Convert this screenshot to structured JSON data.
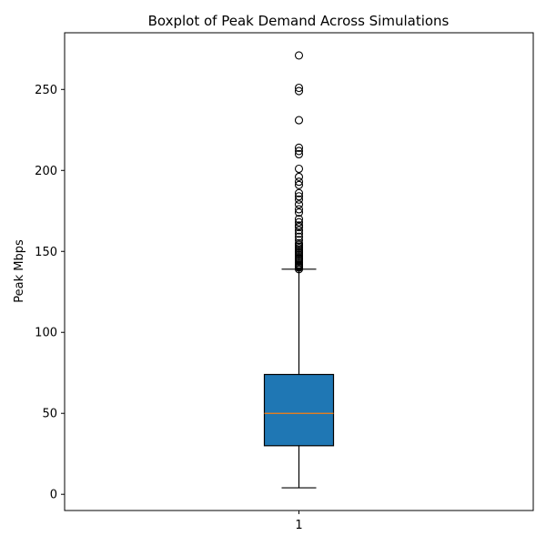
{
  "chart_data": {
    "type": "boxplot",
    "title": "Boxplot of Peak Demand Across Simulations",
    "xlabel": "",
    "ylabel": "Peak Mbps",
    "ylim": [
      -10,
      285
    ],
    "yticks": [
      0,
      50,
      100,
      150,
      200,
      250
    ],
    "categories": [
      "1"
    ],
    "boxes": [
      {
        "category": "1",
        "whisker_low": 4,
        "q1": 30,
        "median": 50,
        "q3": 74,
        "whisker_high": 139,
        "outliers": [
          139,
          140,
          140.5,
          141,
          141.5,
          142,
          143,
          144,
          145,
          145.5,
          146,
          147,
          148,
          149,
          150,
          151,
          152,
          153,
          154,
          155,
          157,
          159,
          161,
          163,
          165,
          166,
          168,
          170,
          174,
          176,
          179,
          182,
          184,
          186,
          191,
          193,
          196,
          201,
          210,
          212,
          214,
          231,
          249,
          251,
          271
        ]
      }
    ],
    "colors": {
      "box_fill": "#1f77b4",
      "median": "#ff7f0e",
      "line": "#000000"
    },
    "grid": false,
    "legend": "none"
  }
}
